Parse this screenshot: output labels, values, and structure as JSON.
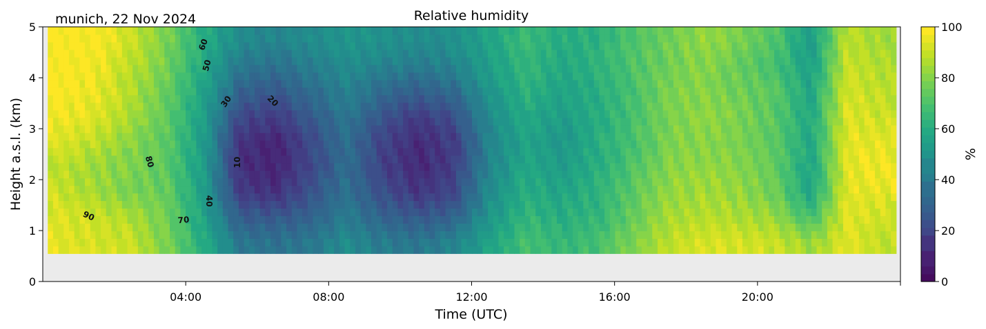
{
  "chart_data": {
    "type": "heatmap",
    "title": "Relative humidity",
    "subtitle": "munich, 22 Nov 2024",
    "xlabel": "Time (UTC)",
    "ylabel": "Height a.s.l. (km)",
    "colorbar_label": "%",
    "xlim_hours": [
      0,
      24
    ],
    "ylim": [
      0,
      5
    ],
    "data_extent": {
      "time_hours": [
        0.14,
        23.88
      ],
      "height_km": [
        0.55,
        5
      ]
    },
    "xticks": [
      {
        "value": 4,
        "label": "04:00"
      },
      {
        "value": 8,
        "label": "08:00"
      },
      {
        "value": 12,
        "label": "12:00"
      },
      {
        "value": 16,
        "label": "16:00"
      },
      {
        "value": 20,
        "label": "20:00"
      }
    ],
    "yticks": [
      {
        "value": 0,
        "label": "0"
      },
      {
        "value": 1,
        "label": "1"
      },
      {
        "value": 2,
        "label": "2"
      },
      {
        "value": 3,
        "label": "3"
      },
      {
        "value": 4,
        "label": "4"
      },
      {
        "value": 5,
        "label": "5"
      }
    ],
    "colorbar_ticks": [
      {
        "value": 0,
        "label": "0"
      },
      {
        "value": 20,
        "label": "20"
      },
      {
        "value": 40,
        "label": "40"
      },
      {
        "value": 60,
        "label": "60"
      },
      {
        "value": 80,
        "label": "80"
      },
      {
        "value": 100,
        "label": "100"
      }
    ],
    "clim": [
      0,
      100
    ],
    "colormap": [
      "#440154",
      "#482475",
      "#414487",
      "#355f8d",
      "#2a788e",
      "#21918c",
      "#22a884",
      "#44bf70",
      "#7ad151",
      "#bddf26",
      "#fde725"
    ],
    "contour_labels": [
      {
        "text": "60",
        "time": 4.5,
        "height": 4.65,
        "angle": -70
      },
      {
        "text": "50",
        "time": 4.6,
        "height": 4.24,
        "angle": -75
      },
      {
        "text": "30",
        "time": 5.14,
        "height": 3.53,
        "angle": -55
      },
      {
        "text": "20",
        "time": 6.43,
        "height": 3.54,
        "angle": 45
      },
      {
        "text": "10",
        "time": 5.45,
        "height": 2.34,
        "angle": -90
      },
      {
        "text": "40",
        "time": 4.64,
        "height": 1.58,
        "angle": 90
      },
      {
        "text": "80",
        "time": 2.98,
        "height": 2.35,
        "angle": 75
      },
      {
        "text": "90",
        "time": 1.28,
        "height": 1.28,
        "angle": 25
      },
      {
        "text": "70",
        "time": 3.94,
        "height": 1.2,
        "angle": -5
      }
    ],
    "times_hours": [
      0.5,
      1.5,
      2.5,
      3.5,
      4.5,
      5.5,
      6.5,
      7.5,
      8.5,
      9.5,
      10.5,
      11.5,
      12.5,
      13.5,
      14.5,
      15.5,
      16.5,
      17.5,
      18.5,
      19.5,
      20.5,
      21.5,
      22.5,
      23.5
    ],
    "heights_km": [
      4.75,
      4.25,
      3.75,
      3.25,
      2.75,
      2.25,
      1.75,
      1.25,
      0.75
    ],
    "values_by_time": [
      [
        100,
        100,
        100,
        98,
        95,
        90,
        92,
        95,
        96
      ],
      [
        100,
        98,
        97,
        95,
        90,
        85,
        86,
        92,
        94
      ],
      [
        92,
        90,
        88,
        86,
        82,
        80,
        80,
        88,
        92
      ],
      [
        80,
        78,
        76,
        75,
        74,
        74,
        76,
        78,
        80
      ],
      [
        62,
        60,
        58,
        56,
        55,
        55,
        56,
        58,
        62
      ],
      [
        48,
        40,
        32,
        22,
        15,
        14,
        18,
        30,
        40
      ],
      [
        45,
        38,
        28,
        18,
        10,
        10,
        14,
        28,
        38
      ],
      [
        48,
        42,
        35,
        28,
        22,
        22,
        25,
        32,
        40
      ],
      [
        52,
        48,
        44,
        40,
        36,
        36,
        38,
        42,
        48
      ],
      [
        50,
        45,
        35,
        26,
        20,
        20,
        24,
        32,
        42
      ],
      [
        48,
        42,
        30,
        18,
        12,
        12,
        16,
        28,
        40
      ],
      [
        50,
        45,
        35,
        25,
        18,
        18,
        22,
        32,
        45
      ],
      [
        58,
        56,
        52,
        48,
        45,
        45,
        48,
        52,
        58
      ],
      [
        68,
        66,
        64,
        60,
        58,
        60,
        62,
        66,
        70
      ],
      [
        62,
        60,
        58,
        55,
        52,
        55,
        58,
        62,
        66
      ],
      [
        64,
        64,
        62,
        62,
        62,
        62,
        64,
        66,
        70
      ],
      [
        72,
        72,
        70,
        70,
        70,
        72,
        74,
        76,
        80
      ],
      [
        78,
        78,
        80,
        80,
        80,
        82,
        84,
        86,
        90
      ],
      [
        84,
        82,
        82,
        84,
        82,
        84,
        86,
        90,
        94
      ],
      [
        80,
        76,
        78,
        80,
        80,
        82,
        84,
        88,
        94
      ],
      [
        72,
        70,
        74,
        74,
        74,
        76,
        78,
        84,
        92
      ],
      [
        55,
        56,
        58,
        60,
        60,
        58,
        58,
        70,
        85
      ],
      [
        90,
        92,
        94,
        95,
        96,
        96,
        96,
        96,
        96
      ],
      [
        86,
        88,
        90,
        92,
        96,
        98,
        96,
        92,
        90
      ]
    ]
  }
}
